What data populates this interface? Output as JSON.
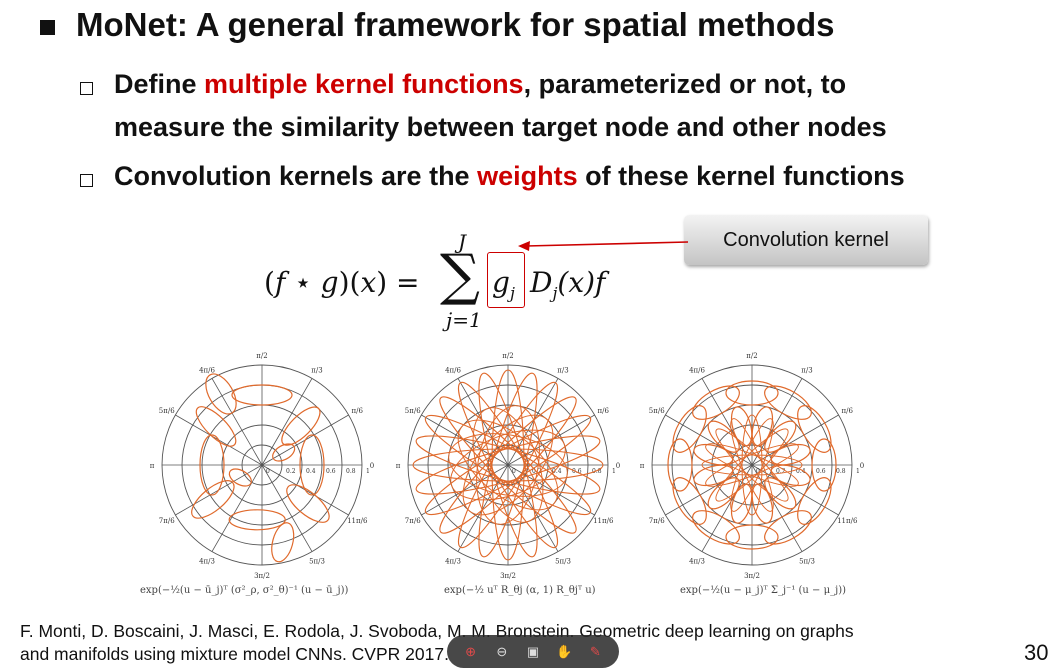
{
  "slide": {
    "title": "MoNet: A general framework for spatial methods",
    "bullets": [
      {
        "pre": "Define ",
        "highlight": "multiple kernel functions",
        "post_line1": ", parameterized or not, to",
        "line2": "measure the similarity between target node and other nodes"
      },
      {
        "pre": "Convolution kernels are the ",
        "highlight": "weights",
        "post": " of these kernel functions"
      }
    ],
    "callout": "Convolution kernel",
    "formula": {
      "lhs": "(f ⋆ g)(x) =",
      "sum_top": "J",
      "sum_bottom": "j=1",
      "boxed": "g",
      "boxed_sub": "j",
      "rhs_D": "D",
      "rhs_sub": "j",
      "rhs_rest": "(x)f"
    },
    "polar_labels": {
      "top": "π/2",
      "upper_left_1": "4π/6",
      "upper_left_2": "5π/6",
      "upper_right_1": "π/3",
      "upper_right_2": "π/6",
      "left": "π",
      "right": "0",
      "lower_left_1": "7π/6",
      "lower_left_2": "4π/3",
      "bottom": "3π/2",
      "lower_right_1": "5π/3",
      "lower_right_2": "11π/6",
      "r1": "0.2",
      "r2": "0.4",
      "r3": "0.6",
      "r4": "0.8",
      "r5": "1",
      "r0": "0"
    },
    "captions": [
      "exp(−½(u − ū_j)ᵀ (σ²_ρ, σ²_θ)⁻¹ (u − ū_j))",
      "exp(−½ uᵀ R_θj (α, 1) R_θjᵀ u)",
      "exp(−½(u − μ_j)ᵀ Σ_j⁻¹ (u − μ_j))"
    ],
    "reference_line1": "F. Monti, D. Boscaini, J. Masci, E. Rodola, J. Svoboda, M. M. Bronstein. Geometric deep learning on graphs",
    "reference_line2": "and manifolds using mixture model CNNs. CVPR 2017.",
    "page_number": "30"
  },
  "toolbar": {
    "items": [
      {
        "icon": "zoom-in-icon",
        "glyph": "⊕"
      },
      {
        "icon": "zoom-out-icon",
        "glyph": "⊖"
      },
      {
        "icon": "fit-page-icon",
        "glyph": "▣"
      },
      {
        "icon": "pan-hand-icon",
        "glyph": "✋"
      },
      {
        "icon": "laser-pointer-icon",
        "glyph": "✎"
      }
    ]
  },
  "colors": {
    "accent_red": "#cc0000",
    "curve_orange": "#e06a2c",
    "grid_gray": "#555555"
  }
}
